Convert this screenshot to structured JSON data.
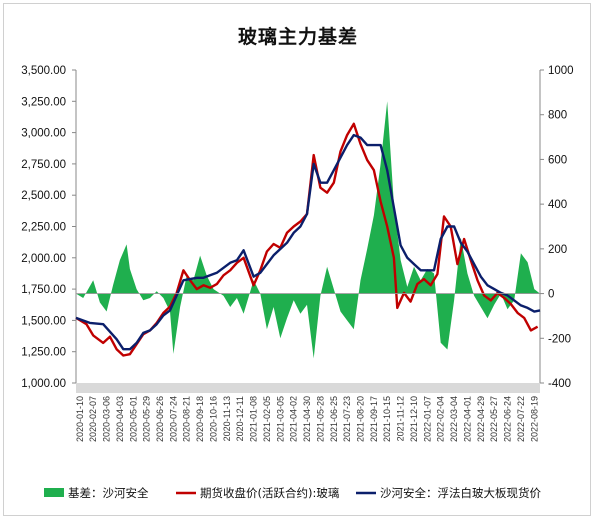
{
  "chart_data": {
    "type": "line",
    "title": "玻璃主力基差",
    "x_ticks": [
      "2020-01-10",
      "2020-02-07",
      "2020-03-06",
      "2020-04-03",
      "2020-05-01",
      "2020-05-29",
      "2020-06-26",
      "2020-07-24",
      "2020-08-21",
      "2020-09-18",
      "2020-10-16",
      "2020-11-13",
      "2020-12-11",
      "2021-01-08",
      "2021-02-05",
      "2021-03-05",
      "2021-04-02",
      "2021-04-30",
      "2021-05-28",
      "2021-06-25",
      "2021-07-23",
      "2021-08-20",
      "2021-09-17",
      "2021-10-15",
      "2021-11-12",
      "2021-12-10",
      "2022-01-07",
      "2022-02-04",
      "2022-03-04",
      "2022-04-01",
      "2022-04-29",
      "2022-05-27",
      "2022-06-24",
      "2022-07-22",
      "2022-08-19"
    ],
    "x_range": [
      "2020-01-02",
      "2022-08-31"
    ],
    "left_axis": {
      "ylim": [
        1000,
        3500
      ],
      "ticks": [
        "1,000.00",
        "1,250.00",
        "1,500.00",
        "1,750.00",
        "2,000.00",
        "2,250.00",
        "2,500.00",
        "2,750.00",
        "3,000.00",
        "3,250.00",
        "3,500.00"
      ]
    },
    "right_axis": {
      "ylim": [
        -400,
        1000
      ],
      "ticks": [
        "-400",
        "-200",
        "0",
        "200",
        "400",
        "600",
        "800",
        "1000"
      ]
    },
    "series": [
      {
        "name": "基差：沙河安全",
        "type": "area",
        "axis": "right",
        "color": "#1faf4e",
        "points": [
          [
            "2020-01-02",
            0
          ],
          [
            "2020-01-17",
            -20
          ],
          [
            "2020-02-07",
            60
          ],
          [
            "2020-02-21",
            -40
          ],
          [
            "2020-03-06",
            -80
          ],
          [
            "2020-03-20",
            40
          ],
          [
            "2020-04-03",
            150
          ],
          [
            "2020-04-17",
            220
          ],
          [
            "2020-04-24",
            110
          ],
          [
            "2020-05-08",
            20
          ],
          [
            "2020-05-22",
            -30
          ],
          [
            "2020-06-05",
            -20
          ],
          [
            "2020-06-19",
            10
          ],
          [
            "2020-07-03",
            -20
          ],
          [
            "2020-07-17",
            -80
          ],
          [
            "2020-07-24",
            -270
          ],
          [
            "2020-08-07",
            -60
          ],
          [
            "2020-08-21",
            80
          ],
          [
            "2020-09-04",
            60
          ],
          [
            "2020-09-18",
            170
          ],
          [
            "2020-10-02",
            80
          ],
          [
            "2020-10-16",
            20
          ],
          [
            "2020-11-06",
            -10
          ],
          [
            "2020-11-20",
            -60
          ],
          [
            "2020-12-04",
            -20
          ],
          [
            "2020-12-18",
            -90
          ],
          [
            "2021-01-08",
            60
          ],
          [
            "2021-01-22",
            0
          ],
          [
            "2021-02-05",
            -160
          ],
          [
            "2021-02-19",
            -60
          ],
          [
            "2021-03-05",
            -200
          ],
          [
            "2021-03-19",
            -110
          ],
          [
            "2021-04-02",
            -30
          ],
          [
            "2021-04-16",
            -90
          ],
          [
            "2021-04-30",
            -50
          ],
          [
            "2021-05-14",
            -290
          ],
          [
            "2021-05-28",
            -10
          ],
          [
            "2021-06-11",
            120
          ],
          [
            "2021-06-25",
            20
          ],
          [
            "2021-07-09",
            -80
          ],
          [
            "2021-07-23",
            -120
          ],
          [
            "2021-08-06",
            -160
          ],
          [
            "2021-08-20",
            60
          ],
          [
            "2021-09-03",
            200
          ],
          [
            "2021-09-17",
            350
          ],
          [
            "2021-10-01",
            580
          ],
          [
            "2021-10-15",
            860
          ],
          [
            "2021-10-29",
            400
          ],
          [
            "2021-11-12",
            150
          ],
          [
            "2021-11-26",
            30
          ],
          [
            "2021-12-10",
            120
          ],
          [
            "2021-12-24",
            60
          ],
          [
            "2022-01-07",
            110
          ],
          [
            "2022-01-21",
            90
          ],
          [
            "2022-02-04",
            -220
          ],
          [
            "2022-02-18",
            -250
          ],
          [
            "2022-03-04",
            -30
          ],
          [
            "2022-03-18",
            250
          ],
          [
            "2022-04-01",
            90
          ],
          [
            "2022-04-15",
            -10
          ],
          [
            "2022-04-29",
            -60
          ],
          [
            "2022-05-13",
            -110
          ],
          [
            "2022-05-27",
            -50
          ],
          [
            "2022-06-10",
            0
          ],
          [
            "2022-06-24",
            -70
          ],
          [
            "2022-07-08",
            -30
          ],
          [
            "2022-07-22",
            180
          ],
          [
            "2022-08-05",
            140
          ],
          [
            "2022-08-19",
            20
          ],
          [
            "2022-08-31",
            0
          ]
        ]
      },
      {
        "name": "期货收盘价(活跃合约):玻璃",
        "type": "line",
        "axis": "left",
        "color": "#c00000",
        "points": [
          [
            "2020-01-02",
            1520
          ],
          [
            "2020-01-24",
            1470
          ],
          [
            "2020-02-07",
            1380
          ],
          [
            "2020-02-28",
            1320
          ],
          [
            "2020-03-13",
            1370
          ],
          [
            "2020-03-27",
            1270
          ],
          [
            "2020-04-10",
            1220
          ],
          [
            "2020-04-24",
            1230
          ],
          [
            "2020-05-08",
            1310
          ],
          [
            "2020-05-22",
            1390
          ],
          [
            "2020-06-05",
            1420
          ],
          [
            "2020-06-19",
            1480
          ],
          [
            "2020-07-03",
            1560
          ],
          [
            "2020-07-17",
            1610
          ],
          [
            "2020-07-31",
            1720
          ],
          [
            "2020-08-14",
            1900
          ],
          [
            "2020-08-28",
            1820
          ],
          [
            "2020-09-11",
            1750
          ],
          [
            "2020-09-25",
            1780
          ],
          [
            "2020-10-09",
            1760
          ],
          [
            "2020-10-23",
            1790
          ],
          [
            "2020-11-06",
            1860
          ],
          [
            "2020-11-20",
            1900
          ],
          [
            "2020-12-04",
            1960
          ],
          [
            "2020-12-18",
            2000
          ],
          [
            "2021-01-08",
            1780
          ],
          [
            "2021-01-22",
            1900
          ],
          [
            "2021-02-05",
            2050
          ],
          [
            "2021-02-19",
            2110
          ],
          [
            "2021-03-05",
            2080
          ],
          [
            "2021-03-19",
            2200
          ],
          [
            "2021-04-02",
            2250
          ],
          [
            "2021-04-16",
            2290
          ],
          [
            "2021-04-30",
            2350
          ],
          [
            "2021-05-14",
            2820
          ],
          [
            "2021-05-28",
            2560
          ],
          [
            "2021-06-11",
            2520
          ],
          [
            "2021-06-25",
            2600
          ],
          [
            "2021-07-09",
            2850
          ],
          [
            "2021-07-23",
            2980
          ],
          [
            "2021-08-06",
            3070
          ],
          [
            "2021-08-20",
            2910
          ],
          [
            "2021-09-03",
            2780
          ],
          [
            "2021-09-17",
            2700
          ],
          [
            "2021-10-01",
            2450
          ],
          [
            "2021-10-15",
            2250
          ],
          [
            "2021-10-29",
            2000
          ],
          [
            "2021-11-05",
            1600
          ],
          [
            "2021-11-19",
            1720
          ],
          [
            "2021-12-03",
            1650
          ],
          [
            "2021-12-17",
            1790
          ],
          [
            "2021-12-31",
            1830
          ],
          [
            "2022-01-14",
            1780
          ],
          [
            "2022-01-28",
            1870
          ],
          [
            "2022-02-11",
            2330
          ],
          [
            "2022-02-25",
            2250
          ],
          [
            "2022-03-11",
            1950
          ],
          [
            "2022-03-25",
            2150
          ],
          [
            "2022-04-08",
            1980
          ],
          [
            "2022-04-22",
            1820
          ],
          [
            "2022-05-06",
            1700
          ],
          [
            "2022-05-20",
            1660
          ],
          [
            "2022-06-03",
            1720
          ],
          [
            "2022-06-17",
            1680
          ],
          [
            "2022-07-01",
            1630
          ],
          [
            "2022-07-15",
            1560
          ],
          [
            "2022-07-29",
            1520
          ],
          [
            "2022-08-12",
            1420
          ],
          [
            "2022-08-26",
            1450
          ]
        ]
      },
      {
        "name": "沙河安全：浮法白玻大板现货价",
        "type": "line",
        "axis": "left",
        "color": "#0b1f6b",
        "points": [
          [
            "2020-01-02",
            1520
          ],
          [
            "2020-01-31",
            1480
          ],
          [
            "2020-02-28",
            1470
          ],
          [
            "2020-03-27",
            1350
          ],
          [
            "2020-04-10",
            1270
          ],
          [
            "2020-04-24",
            1270
          ],
          [
            "2020-05-08",
            1320
          ],
          [
            "2020-05-22",
            1400
          ],
          [
            "2020-06-05",
            1420
          ],
          [
            "2020-06-19",
            1470
          ],
          [
            "2020-07-03",
            1540
          ],
          [
            "2020-07-17",
            1580
          ],
          [
            "2020-07-31",
            1700
          ],
          [
            "2020-08-14",
            1820
          ],
          [
            "2020-08-28",
            1830
          ],
          [
            "2020-09-11",
            1840
          ],
          [
            "2020-09-25",
            1840
          ],
          [
            "2020-10-09",
            1860
          ],
          [
            "2020-10-23",
            1880
          ],
          [
            "2020-11-06",
            1920
          ],
          [
            "2020-11-20",
            1960
          ],
          [
            "2020-12-04",
            1980
          ],
          [
            "2020-12-18",
            2060
          ],
          [
            "2021-01-08",
            1850
          ],
          [
            "2021-01-22",
            1880
          ],
          [
            "2021-02-05",
            1950
          ],
          [
            "2021-02-19",
            2020
          ],
          [
            "2021-03-05",
            2070
          ],
          [
            "2021-03-19",
            2120
          ],
          [
            "2021-04-02",
            2200
          ],
          [
            "2021-04-16",
            2250
          ],
          [
            "2021-04-30",
            2350
          ],
          [
            "2021-05-14",
            2750
          ],
          [
            "2021-05-28",
            2600
          ],
          [
            "2021-06-11",
            2600
          ],
          [
            "2021-06-25",
            2700
          ],
          [
            "2021-07-09",
            2800
          ],
          [
            "2021-07-23",
            2900
          ],
          [
            "2021-08-06",
            2980
          ],
          [
            "2021-08-20",
            2960
          ],
          [
            "2021-09-03",
            2900
          ],
          [
            "2021-09-17",
            2900
          ],
          [
            "2021-10-01",
            2900
          ],
          [
            "2021-10-15",
            2700
          ],
          [
            "2021-10-29",
            2400
          ],
          [
            "2021-11-12",
            2100
          ],
          [
            "2021-11-26",
            2000
          ],
          [
            "2021-12-10",
            1950
          ],
          [
            "2021-12-24",
            1900
          ],
          [
            "2022-01-07",
            1900
          ],
          [
            "2022-01-21",
            1900
          ],
          [
            "2022-02-04",
            2150
          ],
          [
            "2022-02-18",
            2250
          ],
          [
            "2022-03-04",
            2250
          ],
          [
            "2022-03-18",
            2120
          ],
          [
            "2022-04-01",
            2050
          ],
          [
            "2022-04-15",
            1950
          ],
          [
            "2022-04-29",
            1850
          ],
          [
            "2022-05-13",
            1780
          ],
          [
            "2022-05-27",
            1750
          ],
          [
            "2022-06-10",
            1720
          ],
          [
            "2022-06-24",
            1700
          ],
          [
            "2022-07-08",
            1660
          ],
          [
            "2022-07-22",
            1620
          ],
          [
            "2022-08-05",
            1600
          ],
          [
            "2022-08-19",
            1570
          ],
          [
            "2022-08-31",
            1580
          ]
        ]
      }
    ],
    "legend": {
      "placement": "bottom"
    }
  }
}
